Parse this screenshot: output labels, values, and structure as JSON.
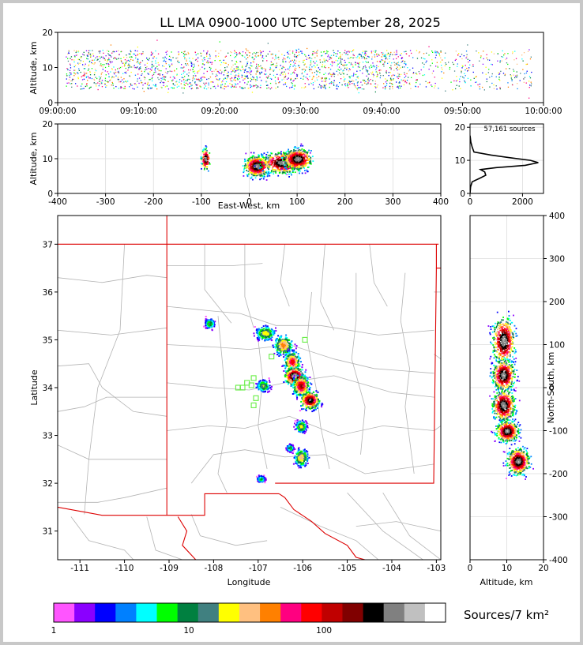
{
  "title": "LL LMA 0900-1000 UTC September 28, 2025",
  "colors": {
    "axis": "#000000",
    "grid": "#dddddd",
    "state_border": "#dd0000",
    "county_line": "#b4b4b4",
    "station_marker": "#66ee44"
  },
  "chart_data": [
    {
      "id": "altitude-vs-time",
      "type": "scatter",
      "ylabel": "Altitude, km",
      "ylim": [
        0,
        20
      ],
      "xlim_minutes": [
        0,
        60
      ],
      "x_tick_labels": [
        "09:00:00",
        "09:10:00",
        "09:20:00",
        "09:30:00",
        "09:40:00",
        "09:50:00",
        "10:00:00"
      ],
      "y_ticks": [
        0,
        10,
        20
      ],
      "activity_window_minutes": [
        1,
        58.5
      ],
      "dense_activity_end_minutes": 43,
      "typical_altitude_km": [
        4,
        15
      ]
    },
    {
      "id": "altitude-vs-east-west",
      "type": "scatter",
      "xlabel": "East-West, km",
      "ylabel": "Altitude, km",
      "xlim": [
        -400,
        400
      ],
      "ylim": [
        0,
        20
      ],
      "x_ticks": [
        -400,
        -300,
        -200,
        -100,
        0,
        100,
        200,
        300,
        400
      ],
      "y_ticks": [
        0,
        10,
        20
      ],
      "clusters": [
        {
          "x_km": -92,
          "z_km": 10,
          "width_km": 14
        },
        {
          "x_km": 15,
          "z_km": 8,
          "width_km": 40
        },
        {
          "x_km": 70,
          "z_km": 9,
          "width_km": 70
        },
        {
          "x_km": 100,
          "z_km": 10,
          "width_km": 45
        }
      ]
    },
    {
      "id": "source-count-histogram",
      "type": "line",
      "annotation": "57,161 sources",
      "xlim": [
        0,
        2800
      ],
      "ylim": [
        0,
        21
      ],
      "x_ticks": [
        0,
        2000
      ],
      "y_ticks": [
        0,
        10,
        20
      ],
      "profile": [
        {
          "z": 0.0,
          "count": 0
        },
        {
          "z": 2.0,
          "count": 20
        },
        {
          "z": 3.5,
          "count": 80
        },
        {
          "z": 4.5,
          "count": 350
        },
        {
          "z": 5.5,
          "count": 600
        },
        {
          "z": 6.5,
          "count": 560
        },
        {
          "z": 7.2,
          "count": 400
        },
        {
          "z": 7.8,
          "count": 1000
        },
        {
          "z": 8.5,
          "count": 2100
        },
        {
          "z": 9.3,
          "count": 2600
        },
        {
          "z": 10.0,
          "count": 2300
        },
        {
          "z": 10.8,
          "count": 1500
        },
        {
          "z": 11.6,
          "count": 800
        },
        {
          "z": 12.5,
          "count": 150
        },
        {
          "z": 14.0,
          "count": 80
        },
        {
          "z": 15.5,
          "count": 30
        },
        {
          "z": 17.0,
          "count": 10
        },
        {
          "z": 17.5,
          "count": 0
        }
      ]
    },
    {
      "id": "plan-view-map",
      "type": "scatter",
      "xlabel": "Longitude",
      "ylabel": "Latitude",
      "xlim": [
        -111.5,
        -102.9
      ],
      "ylim": [
        30.4,
        37.6
      ],
      "x_ticks": [
        -111,
        -110,
        -109,
        -108,
        -107,
        -106,
        -105,
        -104,
        -103
      ],
      "y_ticks": [
        31,
        32,
        33,
        34,
        35,
        36,
        37
      ],
      "storm_blobs": [
        {
          "lon": -108.1,
          "lat": 35.35,
          "w": 0.18,
          "h": 0.18,
          "density": 0.4
        },
        {
          "lon": -106.85,
          "lat": 35.15,
          "w": 0.35,
          "h": 0.25,
          "density": 0.5
        },
        {
          "lon": -106.45,
          "lat": 34.9,
          "w": 0.35,
          "h": 0.35,
          "density": 0.6
        },
        {
          "lon": -106.25,
          "lat": 34.55,
          "w": 0.3,
          "h": 0.35,
          "density": 0.7
        },
        {
          "lon": -106.2,
          "lat": 34.25,
          "w": 0.35,
          "h": 0.3,
          "density": 1.0
        },
        {
          "lon": -106.05,
          "lat": 34.05,
          "w": 0.3,
          "h": 0.35,
          "density": 0.8
        },
        {
          "lon": -105.85,
          "lat": 33.75,
          "w": 0.35,
          "h": 0.3,
          "density": 0.9
        },
        {
          "lon": -106.9,
          "lat": 34.05,
          "w": 0.25,
          "h": 0.2,
          "density": 0.45
        },
        {
          "lon": -106.05,
          "lat": 33.2,
          "w": 0.2,
          "h": 0.2,
          "density": 0.5
        },
        {
          "lon": -106.3,
          "lat": 32.75,
          "w": 0.12,
          "h": 0.12,
          "density": 0.4
        },
        {
          "lon": -106.05,
          "lat": 32.55,
          "w": 0.25,
          "h": 0.3,
          "density": 0.55
        },
        {
          "lon": -106.95,
          "lat": 32.1,
          "w": 0.15,
          "h": 0.12,
          "density": 0.35
        }
      ],
      "stations": [
        {
          "lon": -105.95,
          "lat": 35.0
        },
        {
          "lon": -106.7,
          "lat": 34.65
        },
        {
          "lon": -107.1,
          "lat": 34.2
        },
        {
          "lon": -107.15,
          "lat": 34.05
        },
        {
          "lon": -107.25,
          "lat": 34.1
        },
        {
          "lon": -107.35,
          "lat": 34.0
        },
        {
          "lon": -107.45,
          "lat": 34.0
        },
        {
          "lon": -107.05,
          "lat": 33.78
        },
        {
          "lon": -107.1,
          "lat": 33.63
        }
      ]
    },
    {
      "id": "north-south-vs-altitude",
      "type": "scatter",
      "xlabel": "Altitude, km",
      "ylabel": "North-South, km",
      "xlim": [
        0,
        20
      ],
      "ylim": [
        -400,
        400
      ],
      "x_ticks": [
        0,
        10,
        20
      ],
      "y_ticks": [
        -400,
        -300,
        -200,
        -100,
        0,
        100,
        200,
        300,
        400
      ],
      "clusters": [
        {
          "y_km": 110,
          "z_km": 9,
          "h_km": 90
        },
        {
          "y_km": 30,
          "z_km": 9,
          "h_km": 60
        },
        {
          "y_km": -40,
          "z_km": 9,
          "h_km": 60
        },
        {
          "y_km": -100,
          "z_km": 10,
          "h_km": 40
        },
        {
          "y_km": -170,
          "z_km": 13,
          "h_km": 50
        }
      ]
    }
  ],
  "colorbar": {
    "label": "Sources/7 km²",
    "tick_labels": [
      "1",
      "10",
      "100"
    ],
    "tick_values": [
      1,
      10,
      100
    ],
    "colors": [
      "#ff55ff",
      "#8a00ff",
      "#0000ff",
      "#0080ff",
      "#00ffff",
      "#00ff00",
      "#008040",
      "#408080",
      "#ffff00",
      "#ffc080",
      "#ff8000",
      "#ff0080",
      "#ff0000",
      "#c00000",
      "#800000",
      "#000000",
      "#808080",
      "#c0c0c0",
      "#ffffff"
    ]
  }
}
